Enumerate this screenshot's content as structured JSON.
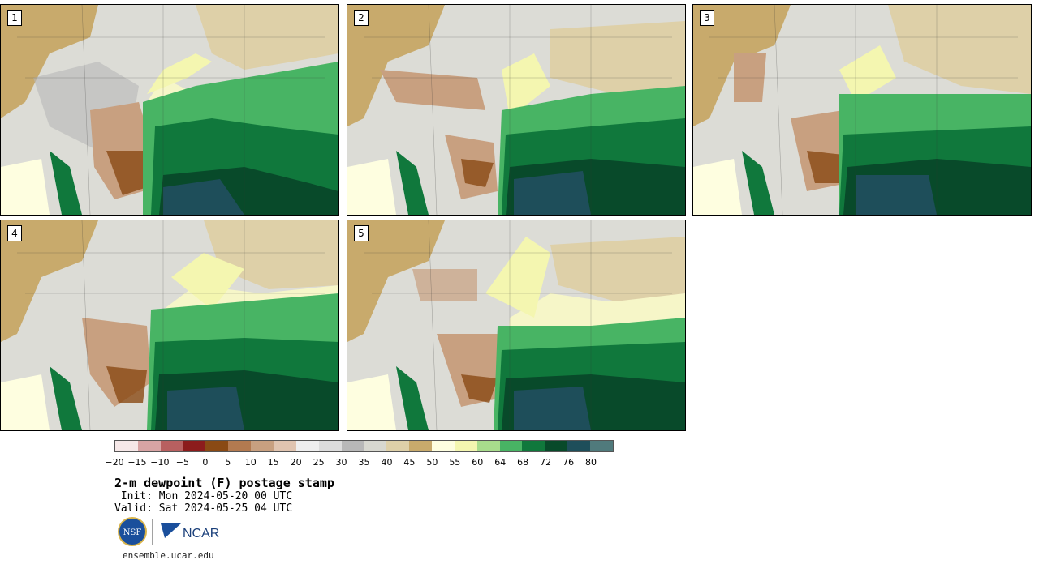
{
  "stamps": [
    {
      "number": "1"
    },
    {
      "number": "2"
    },
    {
      "number": "3"
    },
    {
      "number": "4"
    },
    {
      "number": "5"
    }
  ],
  "colorbar": {
    "colors": [
      "#f6e8e8",
      "#d8a4a4",
      "#b86060",
      "#8c1c1c",
      "#8a4a14",
      "#b37a50",
      "#c8a080",
      "#e0c4b0",
      "#eeeeee",
      "#dcdcdc",
      "#b8b8b8",
      "#d8d8d0",
      "#ded0a8",
      "#c8aa6c",
      "#fefee0",
      "#f4f6b0",
      "#a8dc8c",
      "#48b464",
      "#10783c",
      "#084a2a",
      "#1e4e5a",
      "#507a7c"
    ],
    "ticks": [
      "−20",
      "−15",
      "−10",
      "−5",
      "0",
      "5",
      "10",
      "15",
      "20",
      "25",
      "30",
      "35",
      "40",
      "45",
      "50",
      "55",
      "60",
      "64",
      "68",
      "72",
      "76",
      "80"
    ]
  },
  "title": "2-m dewpoint (F) postage stamp",
  "init": " Init: Mon 2024-05-20 00 UTC",
  "valid": "Valid: Sat 2024-05-25 04 UTC",
  "logos": {
    "nsf": "NSF",
    "ncar": "NCAR"
  },
  "url": "ensemble.ucar.edu"
}
